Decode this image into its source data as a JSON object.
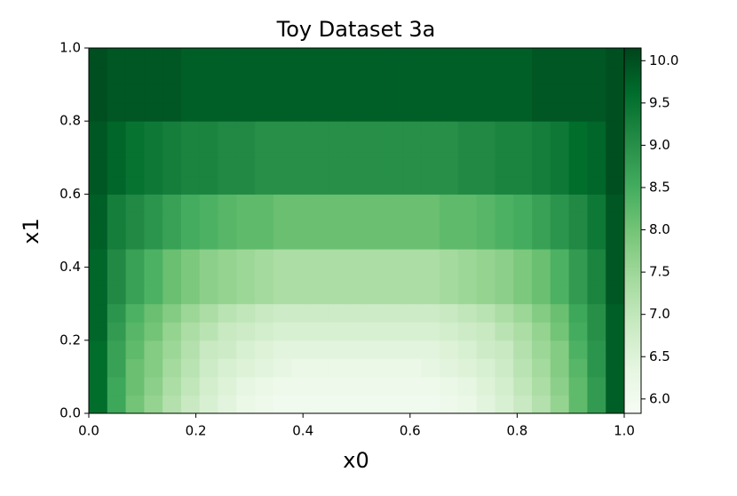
{
  "chart_data": {
    "type": "heatmap",
    "title": "Toy Dataset 3a",
    "x_label": "x0",
    "y_label": "x1",
    "xlim": [
      0,
      1
    ],
    "ylim": [
      0,
      1
    ],
    "xticks": [
      {
        "value": 0,
        "label": "0.0"
      },
      0.2,
      0.4,
      0.6,
      0.8,
      {
        "value": 1,
        "label": "1.0"
      }
    ],
    "yticks": [
      {
        "value": 0,
        "label": "0.0"
      },
      0.2,
      0.4,
      0.6,
      0.8,
      {
        "value": 1,
        "label": "1.0"
      }
    ],
    "clim": [
      5.83,
      10.15
    ],
    "cticks": [
      {
        "value": 6,
        "label": "6.0"
      },
      6.5,
      {
        "value": 7,
        "label": "7.0"
      },
      7.5,
      {
        "value": 8,
        "label": "8.0"
      },
      8.5,
      {
        "value": 9,
        "label": "9.0"
      },
      9.5,
      {
        "value": 10,
        "label": "10.0"
      }
    ],
    "colormap": [
      "#f7fcf5",
      "#e5f5e0",
      "#c7e9c0",
      "#a1d99b",
      "#74c476",
      "#41ab5d",
      "#238b45",
      "#006d2c",
      "#00441b"
    ],
    "z": [
      [
        9.6,
        8.6,
        8.0,
        7.6,
        7.2,
        6.9,
        6.6,
        6.4,
        6.2,
        6.1,
        6.0,
        6.0,
        6.0,
        6.0,
        6.0,
        6.0,
        6.0,
        6.0,
        6.0,
        6.1,
        6.2,
        6.4,
        6.6,
        6.9,
        7.2,
        7.6,
        8.2,
        8.8,
        9.8
      ],
      [
        9.6,
        8.6,
        8.1,
        7.7,
        7.3,
        7.0,
        6.7,
        6.5,
        6.3,
        6.2,
        6.1,
        6.1,
        6.1,
        6.1,
        6.1,
        6.1,
        6.1,
        6.1,
        6.1,
        6.2,
        6.3,
        6.5,
        6.7,
        7.0,
        7.3,
        7.7,
        8.2,
        8.8,
        9.8
      ],
      [
        9.6,
        8.7,
        8.1,
        7.8,
        7.4,
        7.1,
        6.8,
        6.6,
        6.5,
        6.4,
        6.3,
        6.2,
        6.2,
        6.2,
        6.2,
        6.2,
        6.2,
        6.2,
        6.3,
        6.4,
        6.5,
        6.6,
        6.8,
        7.1,
        7.4,
        7.8,
        8.3,
        8.9,
        9.8
      ],
      [
        9.6,
        8.7,
        8.2,
        7.8,
        7.5,
        7.2,
        6.9,
        6.8,
        6.6,
        6.5,
        6.4,
        6.4,
        6.4,
        6.4,
        6.4,
        6.4,
        6.4,
        6.4,
        6.4,
        6.5,
        6.6,
        6.8,
        6.9,
        7.2,
        7.5,
        7.8,
        8.4,
        8.9,
        9.8
      ],
      [
        9.7,
        8.8,
        8.3,
        8.0,
        7.6,
        7.3,
        7.1,
        6.9,
        6.8,
        6.7,
        6.6,
        6.6,
        6.6,
        6.6,
        6.6,
        6.6,
        6.6,
        6.6,
        6.6,
        6.7,
        6.8,
        6.9,
        7.1,
        7.3,
        7.6,
        8.0,
        8.5,
        9.0,
        9.8
      ],
      [
        9.7,
        8.9,
        8.4,
        8.1,
        7.8,
        7.5,
        7.3,
        7.1,
        7.0,
        6.9,
        6.8,
        6.8,
        6.8,
        6.8,
        6.8,
        6.8,
        6.8,
        6.8,
        6.8,
        6.9,
        7.0,
        7.1,
        7.3,
        7.5,
        7.8,
        8.1,
        8.6,
        9.0,
        9.8
      ],
      [
        9.7,
        9.1,
        8.7,
        8.4,
        8.1,
        7.9,
        7.7,
        7.6,
        7.5,
        7.4,
        7.3,
        7.3,
        7.3,
        7.3,
        7.3,
        7.3,
        7.3,
        7.3,
        7.3,
        7.4,
        7.5,
        7.6,
        7.7,
        7.9,
        8.1,
        8.4,
        8.8,
        9.2,
        9.9
      ],
      [
        9.7,
        9.1,
        8.7,
        8.4,
        8.1,
        7.9,
        7.7,
        7.6,
        7.5,
        7.4,
        7.3,
        7.3,
        7.3,
        7.3,
        7.3,
        7.3,
        7.3,
        7.3,
        7.3,
        7.4,
        7.5,
        7.6,
        7.7,
        7.9,
        8.1,
        8.4,
        8.8,
        9.2,
        9.9
      ],
      [
        9.7,
        9.1,
        8.7,
        8.4,
        8.1,
        7.9,
        7.7,
        7.6,
        7.5,
        7.4,
        7.3,
        7.3,
        7.3,
        7.3,
        7.3,
        7.3,
        7.3,
        7.3,
        7.3,
        7.4,
        7.5,
        7.6,
        7.7,
        7.9,
        8.1,
        8.4,
        8.8,
        9.2,
        9.9
      ],
      [
        9.8,
        9.3,
        9.1,
        8.9,
        8.7,
        8.5,
        8.4,
        8.3,
        8.2,
        8.2,
        8.1,
        8.1,
        8.1,
        8.1,
        8.1,
        8.1,
        8.1,
        8.1,
        8.1,
        8.2,
        8.2,
        8.3,
        8.4,
        8.5,
        8.7,
        8.9,
        9.1,
        9.4,
        9.9
      ],
      [
        9.8,
        9.3,
        9.1,
        8.9,
        8.7,
        8.5,
        8.4,
        8.3,
        8.2,
        8.2,
        8.1,
        8.1,
        8.1,
        8.1,
        8.1,
        8.1,
        8.1,
        8.1,
        8.1,
        8.2,
        8.2,
        8.3,
        8.4,
        8.5,
        8.7,
        8.9,
        9.1,
        9.4,
        9.9
      ],
      [
        9.8,
        9.3,
        9.1,
        8.9,
        8.7,
        8.5,
        8.4,
        8.3,
        8.2,
        8.2,
        8.1,
        8.1,
        8.1,
        8.1,
        8.1,
        8.1,
        8.1,
        8.1,
        8.1,
        8.2,
        8.2,
        8.3,
        8.4,
        8.5,
        8.7,
        8.9,
        9.1,
        9.4,
        9.9
      ],
      [
        9.9,
        9.7,
        9.5,
        9.4,
        9.3,
        9.2,
        9.2,
        9.1,
        9.1,
        9.0,
        9.0,
        9.0,
        9.0,
        9.0,
        9.0,
        9.0,
        9.0,
        9.0,
        9.0,
        9.0,
        9.1,
        9.1,
        9.2,
        9.2,
        9.3,
        9.4,
        9.6,
        9.7,
        10.0
      ],
      [
        9.9,
        9.7,
        9.5,
        9.4,
        9.3,
        9.2,
        9.2,
        9.1,
        9.1,
        9.0,
        9.0,
        9.0,
        9.0,
        9.0,
        9.0,
        9.0,
        9.0,
        9.0,
        9.0,
        9.0,
        9.1,
        9.1,
        9.2,
        9.2,
        9.3,
        9.4,
        9.6,
        9.7,
        10.0
      ],
      [
        9.9,
        9.7,
        9.5,
        9.4,
        9.3,
        9.2,
        9.2,
        9.1,
        9.1,
        9.0,
        9.0,
        9.0,
        9.0,
        9.0,
        9.0,
        9.0,
        9.0,
        9.0,
        9.0,
        9.0,
        9.1,
        9.1,
        9.2,
        9.2,
        9.3,
        9.4,
        9.6,
        9.7,
        10.0
      ],
      [
        9.9,
        9.7,
        9.5,
        9.4,
        9.3,
        9.2,
        9.2,
        9.1,
        9.1,
        9.0,
        9.0,
        9.0,
        9.0,
        9.0,
        9.0,
        9.0,
        9.0,
        9.0,
        9.0,
        9.0,
        9.1,
        9.1,
        9.2,
        9.2,
        9.3,
        9.4,
        9.6,
        9.7,
        10.0
      ],
      [
        10.0,
        9.9,
        9.9,
        9.9,
        9.9,
        9.8,
        9.8,
        9.8,
        9.8,
        9.8,
        9.8,
        9.8,
        9.8,
        9.8,
        9.8,
        9.8,
        9.8,
        9.8,
        9.8,
        9.8,
        9.8,
        9.8,
        9.8,
        9.8,
        9.9,
        9.9,
        9.9,
        9.9,
        10.0
      ],
      [
        10.0,
        9.9,
        9.9,
        9.9,
        9.9,
        9.8,
        9.8,
        9.8,
        9.8,
        9.8,
        9.8,
        9.8,
        9.8,
        9.8,
        9.8,
        9.8,
        9.8,
        9.8,
        9.8,
        9.8,
        9.8,
        9.8,
        9.8,
        9.8,
        9.9,
        9.9,
        9.9,
        9.9,
        10.0
      ],
      [
        10.0,
        9.9,
        9.9,
        9.9,
        9.9,
        9.8,
        9.8,
        9.8,
        9.8,
        9.8,
        9.8,
        9.8,
        9.8,
        9.8,
        9.8,
        9.8,
        9.8,
        9.8,
        9.8,
        9.8,
        9.8,
        9.8,
        9.8,
        9.8,
        9.9,
        9.9,
        9.9,
        9.9,
        10.0
      ],
      [
        10.0,
        9.9,
        9.9,
        9.9,
        9.9,
        9.8,
        9.8,
        9.8,
        9.8,
        9.8,
        9.8,
        9.8,
        9.8,
        9.8,
        9.8,
        9.8,
        9.8,
        9.8,
        9.8,
        9.8,
        9.8,
        9.8,
        9.8,
        9.8,
        9.9,
        9.9,
        9.9,
        9.9,
        10.0
      ]
    ]
  }
}
